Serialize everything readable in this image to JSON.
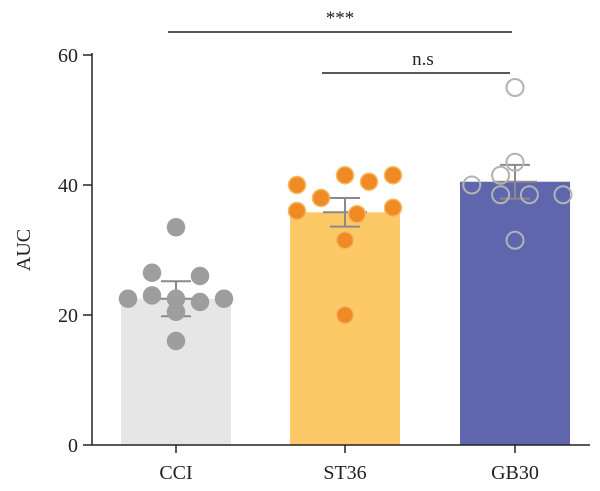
{
  "chart_data": {
    "type": "bar",
    "ylabel": "AUC",
    "ylim": [
      0,
      60
    ],
    "yticks": [
      "0",
      "20",
      "40",
      "60"
    ],
    "categories": [
      "CCI",
      "ST36",
      "GB30"
    ],
    "means": [
      22.5,
      35.8,
      40.5
    ],
    "sem": [
      2.7,
      2.2,
      2.6
    ],
    "bar_colors": [
      "#e6e6e6",
      "#fcc966",
      "#5f66ad"
    ],
    "point_styles": [
      {
        "fill": "#9e9e9e",
        "stroke": "#9e9e9e"
      },
      {
        "fill": "#f08a24",
        "stroke": "#f7b861"
      },
      {
        "fill": "none",
        "stroke": "#b3b3b3"
      }
    ],
    "points": [
      [
        33.5,
        26.5,
        26.0,
        23.0,
        22.5,
        22.5,
        22.5,
        22.0,
        20.5,
        16.0
      ],
      [
        41.5,
        41.5,
        40.5,
        40.0,
        38.0,
        36.5,
        36.0,
        35.5,
        31.5,
        20.0
      ],
      [
        55.0,
        43.5,
        41.5,
        40.0,
        38.5,
        38.5,
        38.5,
        31.5
      ]
    ],
    "significance": [
      {
        "from": 0,
        "to": 2,
        "label": "***"
      },
      {
        "from": 1,
        "to": 2,
        "label": "n.s"
      }
    ]
  }
}
